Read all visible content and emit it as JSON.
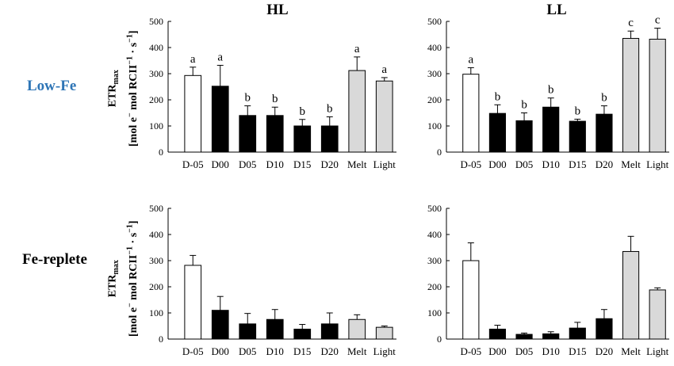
{
  "figure": {
    "columns": [
      "HL",
      "LL"
    ],
    "rows": [
      "Low-Fe",
      "Fe-replete"
    ],
    "row_colors": [
      "#2e75b6",
      "#000000"
    ],
    "ylabel_main": "ETR",
    "ylabel_sub": "max",
    "ylabel_units_a": "[mol e",
    "ylabel_units_sup1": "−",
    "ylabel_units_b": " mol RCII",
    "ylabel_units_sup2": "−1",
    "ylabel_units_c": " · s",
    "ylabel_units_sup3": "−1",
    "ylabel_units_d": "]"
  },
  "colors": {
    "open": "#ffffff",
    "dark": "#000000",
    "melt": "#d9d9d9",
    "stroke": "#000000"
  },
  "chart_data": [
    {
      "type": "bar",
      "panel": "Low-Fe HL",
      "title": "HL",
      "categories": [
        "D-05",
        "D00",
        "D05",
        "D10",
        "D15",
        "D20",
        "Melt",
        "Light"
      ],
      "values": [
        293,
        252,
        140,
        140,
        100,
        100,
        312,
        272
      ],
      "errors": [
        32,
        80,
        37,
        32,
        25,
        35,
        52,
        13
      ],
      "letters": [
        "a",
        "a",
        "b",
        "b",
        "b",
        "b",
        "a",
        "a"
      ],
      "ylim": [
        0,
        500
      ],
      "yticks": [
        0,
        100,
        200,
        300,
        400,
        500
      ]
    },
    {
      "type": "bar",
      "panel": "Low-Fe LL",
      "title": "LL",
      "categories": [
        "D-05",
        "D00",
        "D05",
        "D10",
        "D15",
        "D20",
        "Melt",
        "Light"
      ],
      "values": [
        298,
        148,
        120,
        172,
        118,
        145,
        435,
        432
      ],
      "errors": [
        25,
        33,
        30,
        35,
        8,
        32,
        28,
        42
      ],
      "letters": [
        "a",
        "b",
        "b",
        "b",
        "b",
        "b",
        "c",
        "c"
      ],
      "ylim": [
        0,
        500
      ],
      "yticks": [
        0,
        100,
        200,
        300,
        400,
        500
      ]
    },
    {
      "type": "bar",
      "panel": "Fe-replete HL",
      "categories": [
        "D-05",
        "D00",
        "D05",
        "D10",
        "D15",
        "D20",
        "Melt",
        "Light"
      ],
      "values": [
        282,
        110,
        58,
        75,
        38,
        58,
        75,
        45
      ],
      "errors": [
        38,
        53,
        40,
        38,
        18,
        42,
        18,
        5
      ],
      "ylim": [
        0,
        500
      ],
      "yticks": [
        0,
        100,
        200,
        300,
        400,
        500
      ]
    },
    {
      "type": "bar",
      "panel": "Fe-replete LL",
      "categories": [
        "D-05",
        "D00",
        "D05",
        "D10",
        "D15",
        "D20",
        "Melt",
        "Light"
      ],
      "values": [
        300,
        38,
        18,
        20,
        42,
        78,
        335,
        188
      ],
      "errors": [
        68,
        15,
        5,
        8,
        22,
        35,
        58,
        8
      ],
      "ylim": [
        0,
        500
      ],
      "yticks": [
        0,
        100,
        200,
        300,
        400,
        500
      ]
    }
  ]
}
